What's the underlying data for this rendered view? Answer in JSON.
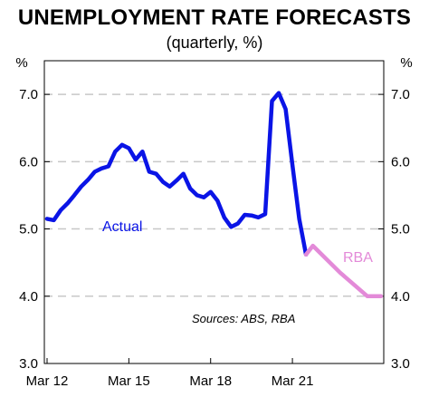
{
  "chart_data": {
    "type": "line",
    "title": "UNEMPLOYMENT RATE FORECASTS",
    "subtitle": "(quarterly, %)",
    "y_unit_left": "%",
    "y_unit_right": "%",
    "ylim": [
      3.0,
      7.5
    ],
    "y_ticks": [
      "3.0",
      "4.0",
      "5.0",
      "6.0",
      "7.0"
    ],
    "x_ticks": [
      "Mar 12",
      "Mar 15",
      "Mar 18",
      "Mar 21"
    ],
    "x_start": "Mar 12",
    "grid": "horizontal dashed",
    "source_note": "Sources: ABS, RBA",
    "series": [
      {
        "name": "Actual",
        "color": "#0a14e6",
        "points": [
          [
            "Mar 12",
            5.15
          ],
          [
            "Jun 12",
            5.13
          ],
          [
            "Sep 12",
            5.28
          ],
          [
            "Dec 12",
            5.38
          ],
          [
            "Mar 13",
            5.5
          ],
          [
            "Jun 13",
            5.63
          ],
          [
            "Sep 13",
            5.73
          ],
          [
            "Dec 13",
            5.85
          ],
          [
            "Mar 14",
            5.9
          ],
          [
            "Jun 14",
            5.93
          ],
          [
            "Sep 14",
            6.15
          ],
          [
            "Dec 14",
            6.25
          ],
          [
            "Mar 15",
            6.2
          ],
          [
            "Jun 15",
            6.03
          ],
          [
            "Sep 15",
            6.15
          ],
          [
            "Dec 15",
            5.85
          ],
          [
            "Mar 16",
            5.82
          ],
          [
            "Jun 16",
            5.7
          ],
          [
            "Sep 16",
            5.63
          ],
          [
            "Dec 16",
            5.72
          ],
          [
            "Mar 17",
            5.82
          ],
          [
            "Jun 17",
            5.6
          ],
          [
            "Sep 17",
            5.5
          ],
          [
            "Dec 17",
            5.47
          ],
          [
            "Mar 18",
            5.55
          ],
          [
            "Jun 18",
            5.42
          ],
          [
            "Sep 18",
            5.17
          ],
          [
            "Dec 18",
            5.03
          ],
          [
            "Mar 19",
            5.08
          ],
          [
            "Jun 19",
            5.21
          ],
          [
            "Sep 19",
            5.2
          ],
          [
            "Dec 19",
            5.17
          ],
          [
            "Mar 20",
            5.22
          ],
          [
            "Jun 20",
            6.9
          ],
          [
            "Sep 20",
            7.02
          ],
          [
            "Dec 20",
            6.78
          ],
          [
            "Mar 21",
            5.95
          ],
          [
            "Jun 21",
            5.15
          ],
          [
            "Sep 21",
            4.62
          ]
        ]
      },
      {
        "name": "RBA",
        "color": "#e38ad8",
        "points": [
          [
            "Sep 21",
            4.62
          ],
          [
            "Dec 21",
            4.75
          ],
          [
            "Dec 22",
            4.35
          ],
          [
            "Dec 23",
            4.0
          ],
          [
            "Jun 24",
            4.0
          ]
        ]
      }
    ]
  }
}
